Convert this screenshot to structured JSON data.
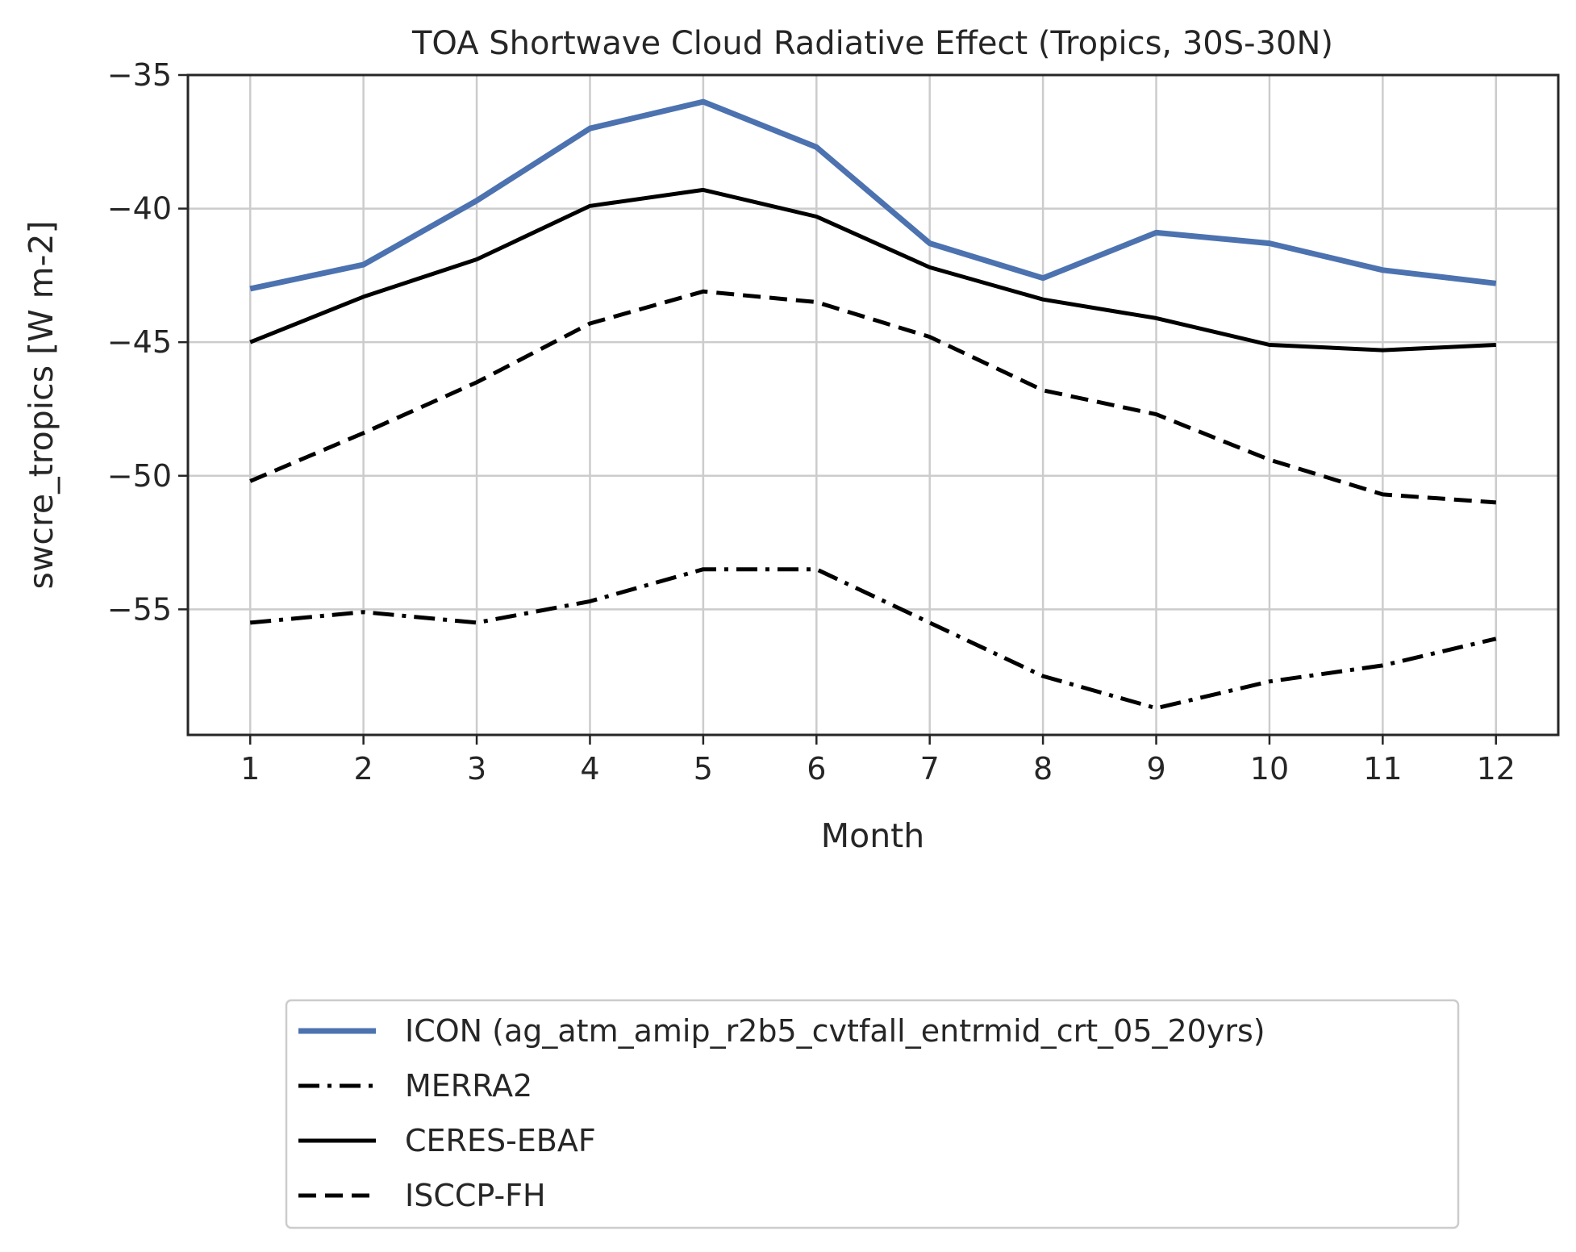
{
  "chart_data": {
    "type": "line",
    "title": "TOA Shortwave Cloud Radiative Effect (Tropics, 30S-30N)",
    "xlabel": "Month",
    "ylabel": "swcre_tropics [W m-2]",
    "x": [
      1,
      2,
      3,
      4,
      5,
      6,
      7,
      8,
      9,
      10,
      11,
      12
    ],
    "xticks": [
      "1",
      "2",
      "3",
      "4",
      "5",
      "6",
      "7",
      "8",
      "9",
      "10",
      "11",
      "12"
    ],
    "xlim": [
      0.45,
      12.55
    ],
    "ylim": [
      -59.7,
      -35
    ],
    "yticks": [
      -35,
      -40,
      -45,
      -50,
      -55
    ],
    "ytick_labels": [
      "−35",
      "−40",
      "−45",
      "−50",
      "−55"
    ],
    "grid": true,
    "legend_position": "below",
    "series": [
      {
        "name": "ICON (ag_atm_amip_r2b5_cvtfall_entrmid_crt_05_20yrs)",
        "color": "#4c72b0",
        "style": "solid",
        "width": 7,
        "values": [
          -43.0,
          -42.1,
          -39.7,
          -37.0,
          -36.0,
          -37.7,
          -41.3,
          -42.6,
          -40.9,
          -41.3,
          -42.3,
          -42.8
        ]
      },
      {
        "name": "MERRA2",
        "color": "#000000",
        "style": "dashdot",
        "width": 5,
        "values": [
          -55.5,
          -55.1,
          -55.5,
          -54.7,
          -53.5,
          -53.5,
          -55.5,
          -57.5,
          -58.7,
          -57.7,
          -57.1,
          -56.1
        ]
      },
      {
        "name": "CERES-EBAF",
        "color": "#000000",
        "style": "solid",
        "width": 5,
        "values": [
          -45.0,
          -43.3,
          -41.9,
          -39.9,
          -39.3,
          -40.3,
          -42.2,
          -43.4,
          -44.1,
          -45.1,
          -45.3,
          -45.1
        ]
      },
      {
        "name": "ISCCP-FH",
        "color": "#000000",
        "style": "dashed",
        "width": 5,
        "values": [
          -50.2,
          -48.4,
          -46.5,
          -44.3,
          -43.1,
          -43.5,
          -44.8,
          -46.8,
          -47.7,
          -49.4,
          -50.7,
          -51.0
        ]
      }
    ]
  }
}
